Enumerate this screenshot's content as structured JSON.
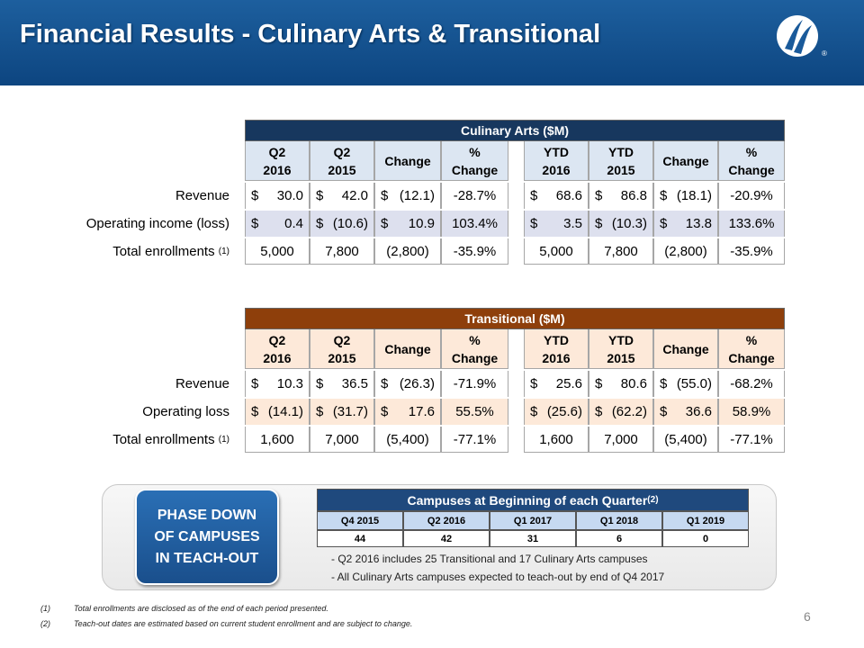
{
  "header": {
    "title": "Financial Results - Culinary Arts & Transitional"
  },
  "tables": [
    {
      "title": "Culinary Arts ($M)",
      "theme": "blue",
      "columns": [
        [
          "Q2",
          "2016"
        ],
        [
          "Q2",
          "2015"
        ],
        [
          "Change"
        ],
        [
          "%",
          "Change"
        ],
        [
          "YTD",
          "2016"
        ],
        [
          "YTD",
          "2015"
        ],
        [
          "Change"
        ],
        [
          "%",
          "Change"
        ]
      ],
      "rows": [
        {
          "label": "Revenue",
          "cells": [
            [
              "$",
              "30.0"
            ],
            [
              "$",
              "42.0"
            ],
            [
              "$",
              "(12.1)"
            ],
            [
              "-28.7%"
            ],
            [
              "$",
              "68.6"
            ],
            [
              "$",
              "86.8"
            ],
            [
              "$",
              "(18.1)"
            ],
            [
              "-20.9%"
            ]
          ]
        },
        {
          "label": "Operating income (loss)",
          "cells": [
            [
              "$",
              "0.4"
            ],
            [
              "$",
              "(10.6)"
            ],
            [
              "$",
              "10.9"
            ],
            [
              "103.4%"
            ],
            [
              "$",
              "3.5"
            ],
            [
              "$",
              "(10.3)"
            ],
            [
              "$",
              "13.8"
            ],
            [
              "133.6%"
            ]
          ]
        },
        {
          "label": "Total enrollments",
          "note": "(1)",
          "cells": [
            [
              "5,000"
            ],
            [
              "7,800"
            ],
            [
              "(2,800)"
            ],
            [
              "-35.9%"
            ],
            [
              "5,000"
            ],
            [
              "7,800"
            ],
            [
              "(2,800)"
            ],
            [
              "-35.9%"
            ]
          ]
        }
      ]
    },
    {
      "title": "Transitional ($M)",
      "theme": "brown",
      "columns": [
        [
          "Q2",
          "2016"
        ],
        [
          "Q2",
          "2015"
        ],
        [
          "Change"
        ],
        [
          "%",
          "Change"
        ],
        [
          "YTD",
          "2016"
        ],
        [
          "YTD",
          "2015"
        ],
        [
          "Change"
        ],
        [
          "%",
          "Change"
        ]
      ],
      "rows": [
        {
          "label": "Revenue",
          "cells": [
            [
              "$",
              "10.3"
            ],
            [
              "$",
              "36.5"
            ],
            [
              "$",
              "(26.3)"
            ],
            [
              "-71.9%"
            ],
            [
              "$",
              "25.6"
            ],
            [
              "$",
              "80.6"
            ],
            [
              "$",
              "(55.0)"
            ],
            [
              "-68.2%"
            ]
          ]
        },
        {
          "label": "Operating loss",
          "cells": [
            [
              "$",
              "(14.1)"
            ],
            [
              "$",
              "(31.7)"
            ],
            [
              "$",
              "17.6"
            ],
            [
              "55.5%"
            ],
            [
              "$",
              "(25.6)"
            ],
            [
              "$",
              "(62.2)"
            ],
            [
              "$",
              "36.6"
            ],
            [
              "58.9%"
            ]
          ]
        },
        {
          "label": "Total enrollments",
          "note": "(1)",
          "cells": [
            [
              "1,600"
            ],
            [
              "7,000"
            ],
            [
              "(5,400)"
            ],
            [
              "-77.1%"
            ],
            [
              "1,600"
            ],
            [
              "7,000"
            ],
            [
              "(5,400)"
            ],
            [
              "-77.1%"
            ]
          ]
        }
      ]
    }
  ],
  "callout": "PHASE DOWN OF CAMPUSES IN TEACH-OUT",
  "campuses": {
    "title": "Campuses at Beginning of each Quarter",
    "note": "(2)",
    "quarters": [
      "Q4 2015",
      "Q2 2016",
      "Q1 2017",
      "Q1 2018",
      "Q1 2019"
    ],
    "counts": [
      44,
      42,
      31,
      6,
      0
    ],
    "bullets": [
      "- Q2 2016 includes 25 Transitional and 17 Culinary Arts campuses",
      "- All Culinary Arts campuses expected to teach-out by end of Q4 2017"
    ]
  },
  "footnotes": [
    {
      "marker": "(1)",
      "text": "Total enrollments are disclosed as of the end of each period presented."
    },
    {
      "marker": "(2)",
      "text": "Teach-out dates are estimated based on current student enrollment and are subject to change."
    }
  ],
  "page_number": "6"
}
